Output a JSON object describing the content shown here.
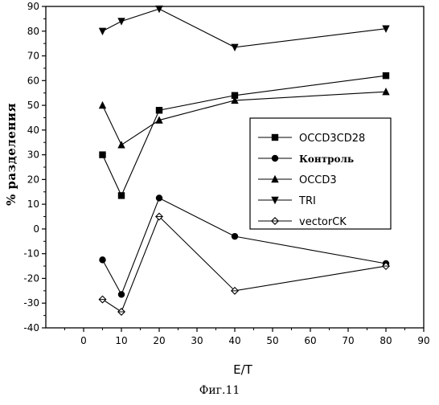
{
  "chart_data": {
    "type": "line",
    "xlabel": "E/T",
    "ylabel": "% разделения",
    "xlim": [
      -10,
      90
    ],
    "ylim": [
      -40,
      90
    ],
    "xticks": [
      0,
      10,
      20,
      30,
      40,
      50,
      60,
      70,
      80,
      90
    ],
    "yticks": [
      -40,
      -30,
      -20,
      -10,
      0,
      10,
      20,
      30,
      40,
      50,
      60,
      70,
      80,
      90
    ],
    "grid": false,
    "legend_placement": "center-right",
    "x": [
      5,
      10,
      20,
      40,
      80
    ],
    "series": [
      {
        "name": "OCCD3CD28",
        "marker": "square",
        "values": [
          30,
          13.5,
          48,
          54,
          62
        ]
      },
      {
        "name": "Контроль",
        "marker": "circle",
        "values": [
          -12.5,
          -26.5,
          12.5,
          -3,
          -14
        ]
      },
      {
        "name": "OCCD3",
        "marker": "triangle-up",
        "values": [
          50,
          34,
          44,
          52,
          55.5
        ]
      },
      {
        "name": "TRI",
        "marker": "triangle-down",
        "values": [
          80,
          84,
          89,
          73.5,
          81
        ]
      },
      {
        "name": "vectorCK",
        "marker": "diamond",
        "values": [
          -28.5,
          -33.5,
          5,
          -25,
          -15
        ]
      }
    ]
  },
  "caption": "Фиг.11"
}
